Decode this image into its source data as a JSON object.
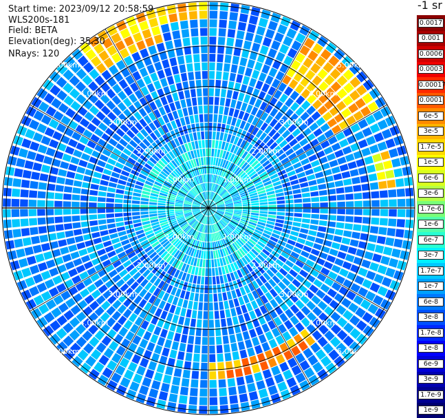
{
  "header": {
    "start_time": "Start time: 2023/09/12 20:58:59",
    "instrument": "WLS200s-181",
    "field": "Field: BETA",
    "elevation": "Elevation(deg): 35.30",
    "nrays": "NRays: 120"
  },
  "colorbar": {
    "unit": "-1 sr",
    "levels": [
      {
        "label": "0.0017",
        "color": "#8b0000"
      },
      {
        "label": "0.001",
        "color": "#a80000"
      },
      {
        "label": "0.0006",
        "color": "#d00000"
      },
      {
        "label": "0.0003",
        "color": "#f00000"
      },
      {
        "label": "0.00017",
        "color": "#ff2a00"
      },
      {
        "label": "0.0001",
        "color": "#ff5a00"
      },
      {
        "label": "6e-5",
        "color": "#ff8a00"
      },
      {
        "label": "3e-5",
        "color": "#ffb400"
      },
      {
        "label": "1.7e-5",
        "color": "#ffd800"
      },
      {
        "label": "1e-5",
        "color": "#ffff00"
      },
      {
        "label": "6e-6",
        "color": "#d8ff1e"
      },
      {
        "label": "3e-6",
        "color": "#b4ff46"
      },
      {
        "label": "1.7e-6",
        "color": "#78ff78"
      },
      {
        "label": "1e-6",
        "color": "#50ffaa"
      },
      {
        "label": "6e-7",
        "color": "#28ffd0"
      },
      {
        "label": "3e-7",
        "color": "#00f0ff"
      },
      {
        "label": "1.7e-7",
        "color": "#00c8ff"
      },
      {
        "label": "1e-7",
        "color": "#00a0ff"
      },
      {
        "label": "6e-8",
        "color": "#0078ff"
      },
      {
        "label": "3e-8",
        "color": "#0050ff"
      },
      {
        "label": "1.7e-8",
        "color": "#0028ff"
      },
      {
        "label": "1e-8",
        "color": "#0000ff"
      },
      {
        "label": "6e-9",
        "color": "#0000d8"
      },
      {
        "label": "3e-9",
        "color": "#0000b0"
      },
      {
        "label": "1.7e-9",
        "color": "#000090"
      },
      {
        "label": "1e-9",
        "color": "#000070"
      }
    ]
  },
  "chart_data": {
    "type": "heatmap",
    "projection": "polar (PPI scan)",
    "field": "BETA",
    "nrays": 120,
    "range_rings_km": [
      1.0,
      2.0,
      3.0,
      4.0,
      5.0
    ],
    "range_ring_labels": [
      "1.00km",
      "2.00km",
      "3.00km",
      "4.00km",
      "5.00km"
    ],
    "max_range_km": 5.1,
    "radial_lines_every_deg": 30,
    "background_level": "1e-7",
    "near_field_level": "3e-7",
    "elevated_patches": [
      {
        "azimuth_deg": [
          320,
          345
        ],
        "range_km": [
          4.3,
          5.0
        ],
        "peak_level": "6e-5"
      },
      {
        "azimuth_deg": [
          345,
          360
        ],
        "range_km": [
          4.6,
          5.0
        ],
        "peak_level": "6e-5"
      },
      {
        "azimuth_deg": [
          30,
          60
        ],
        "range_km": [
          3.6,
          4.8
        ],
        "peak_level": "6e-5"
      },
      {
        "azimuth_deg": [
          72,
          84
        ],
        "range_km": [
          4.3,
          4.6
        ],
        "peak_level": "3e-5"
      },
      {
        "azimuth_deg": [
          140,
          180
        ],
        "range_km": [
          3.8,
          4.2
        ],
        "peak_level": "0.0001"
      }
    ]
  }
}
